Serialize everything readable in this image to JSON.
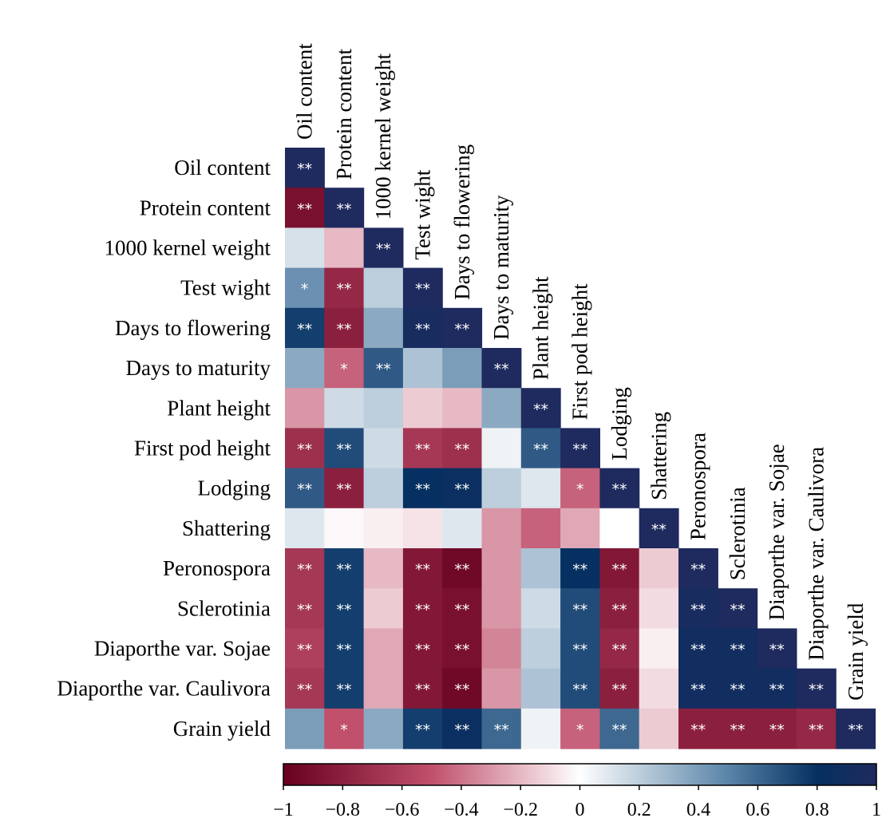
{
  "chart_data": {
    "type": "heatmap",
    "title": "",
    "variables": [
      "Oil content",
      "Protein content",
      "1000 kernel weight",
      "Test wight",
      "Days to flowering",
      "Days to maturity",
      "Plant height",
      "First pod height",
      "Lodging",
      "Shattering",
      "Peronospora",
      "Sclerotinia",
      "Diaporthe var. Sojae",
      "Diaporthe var. Caulivora",
      "Grain yield"
    ],
    "values": [
      [
        1
      ],
      [
        -0.9,
        1
      ],
      [
        0.12,
        -0.2,
        1
      ],
      [
        0.45,
        -0.75,
        0.2,
        1
      ],
      [
        0.75,
        -0.8,
        0.35,
        0.95,
        1
      ],
      [
        0.35,
        -0.45,
        0.65,
        0.25,
        0.4,
        1
      ],
      [
        -0.3,
        0.15,
        0.2,
        -0.15,
        -0.2,
        0.35,
        1
      ],
      [
        -0.7,
        0.7,
        0.15,
        -0.65,
        -0.7,
        0.05,
        0.65,
        1
      ],
      [
        0.65,
        -0.8,
        0.2,
        0.8,
        0.85,
        0.2,
        0.1,
        -0.45,
        1
      ],
      [
        0.1,
        -0.02,
        -0.05,
        -0.08,
        0.1,
        -0.3,
        -0.45,
        -0.25,
        0,
        1
      ],
      [
        -0.65,
        0.75,
        -0.2,
        -0.85,
        -0.95,
        -0.3,
        0.25,
        0.8,
        -0.85,
        -0.15,
        1
      ],
      [
        -0.65,
        0.75,
        -0.15,
        -0.85,
        -0.9,
        -0.3,
        0.15,
        0.7,
        -0.8,
        -0.1,
        0.95,
        1
      ],
      [
        -0.6,
        0.75,
        -0.25,
        -0.85,
        -0.9,
        -0.35,
        0.2,
        0.7,
        -0.75,
        -0.05,
        0.9,
        0.9,
        1
      ],
      [
        -0.65,
        0.75,
        -0.25,
        -0.85,
        -0.95,
        -0.3,
        0.25,
        0.7,
        -0.8,
        -0.1,
        0.9,
        0.9,
        0.9,
        1
      ],
      [
        0.4,
        -0.5,
        0.35,
        0.75,
        0.85,
        0.6,
        0.05,
        -0.45,
        0.6,
        -0.15,
        -0.8,
        -0.8,
        -0.8,
        -0.75,
        1
      ]
    ],
    "significance": [
      [
        "**"
      ],
      [
        "**",
        "**"
      ],
      [
        "",
        "",
        "**"
      ],
      [
        "*",
        "**",
        "",
        "**"
      ],
      [
        "**",
        "**",
        "",
        "**",
        "**"
      ],
      [
        "",
        "*",
        "**",
        "",
        "",
        "**"
      ],
      [
        "",
        "",
        "",
        "",
        "",
        "",
        "**"
      ],
      [
        "**",
        "**",
        "",
        "**",
        "**",
        "",
        "**",
        "**"
      ],
      [
        "**",
        "**",
        "",
        "**",
        "**",
        "",
        "",
        "*",
        "**"
      ],
      [
        "",
        "",
        "",
        "",
        "",
        "",
        "",
        "",
        "",
        "**"
      ],
      [
        "**",
        "**",
        "",
        "**",
        "**",
        "",
        "",
        "**",
        "**",
        "",
        "**"
      ],
      [
        "**",
        "**",
        "",
        "**",
        "**",
        "",
        "",
        "**",
        "**",
        "",
        "**",
        "**"
      ],
      [
        "**",
        "**",
        "",
        "**",
        "**",
        "",
        "",
        "**",
        "**",
        "",
        "**",
        "**",
        "**"
      ],
      [
        "**",
        "**",
        "",
        "**",
        "**",
        "",
        "",
        "**",
        "**",
        "",
        "**",
        "**",
        "**",
        "**"
      ],
      [
        "",
        "*",
        "",
        "**",
        "**",
        "**",
        "",
        "*",
        "**",
        "",
        "**",
        "**",
        "**",
        "**",
        "**"
      ]
    ],
    "colorbar": {
      "range": [
        -1,
        1
      ],
      "ticks": [
        -1,
        -0.8,
        -0.6,
        -0.4,
        -0.2,
        0,
        0.2,
        0.4,
        0.6,
        0.8,
        1
      ],
      "tick_labels": [
        "−1",
        "−0.8",
        "−0.6",
        "−0.4",
        "−0.2",
        "0",
        "0.2",
        "0.4",
        "0.6",
        "0.8",
        "1"
      ]
    },
    "colors": {
      "negative": "#67001f",
      "mid_negative": "#c0506c",
      "zero": "#ffffff",
      "mid_positive": "#5a84a8",
      "positive_peak": "#053061",
      "positive_end": "#1f2a5e"
    }
  }
}
